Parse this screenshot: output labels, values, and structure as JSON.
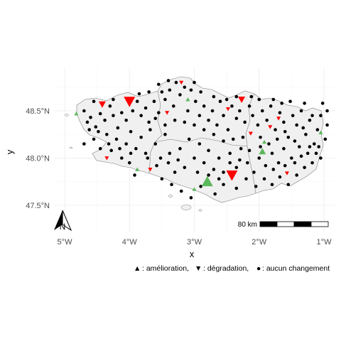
{
  "axes": {
    "x_label": "x",
    "y_label": "y",
    "x_ticks": [
      {
        "value": -5,
        "label": "5°W"
      },
      {
        "value": -4,
        "label": "4°W"
      },
      {
        "value": -3,
        "label": "3°W"
      },
      {
        "value": -2,
        "label": "2°W"
      },
      {
        "value": -1,
        "label": "1°W"
      }
    ],
    "y_ticks": [
      {
        "value": 48.5,
        "label": "48.5°N"
      },
      {
        "value": 48.0,
        "label": "48.0°N"
      },
      {
        "value": 47.5,
        "label": "47.5°N"
      }
    ],
    "xlim": [
      -5.3,
      -0.8
    ],
    "ylim": [
      47.3,
      48.95
    ],
    "grid": true
  },
  "map": {
    "land_color": "#f0f0f0",
    "border_color": "#7f7f7f",
    "grid_color": "#ebebeb"
  },
  "north_arrow": {
    "label": "N",
    "icon": "north-arrow-icon"
  },
  "scale_bar": {
    "label": "80 km"
  },
  "legend": {
    "improvement_symbol": "▲",
    "improvement_text": ": amélioration,",
    "degradation_symbol": "▼",
    "degradation_text": ": dégradation,",
    "nochange_symbol": "●",
    "nochange_text": ": aucun changement"
  },
  "colors": {
    "improvement": "#5cb85c",
    "degradation": "#ff0000",
    "nochange": "#000000"
  },
  "chart_data": {
    "type": "scatter",
    "improvement_points": [
      {
        "lon": -2.8,
        "lat": 47.75,
        "size": "large"
      },
      {
        "lon": -1.95,
        "lat": 48.07,
        "size": "medium"
      },
      {
        "lon": -4.82,
        "lat": 48.47,
        "size": "small"
      },
      {
        "lon": -3.0,
        "lat": 47.67,
        "size": "small"
      },
      {
        "lon": -1.05,
        "lat": 48.27,
        "size": "small"
      },
      {
        "lon": -1.92,
        "lat": 48.17,
        "size": "small"
      },
      {
        "lon": -3.88,
        "lat": 47.88,
        "size": "small"
      },
      {
        "lon": -3.1,
        "lat": 48.62,
        "size": "small"
      }
    ],
    "degradation_points": [
      {
        "lon": -2.42,
        "lat": 47.82,
        "size": "large"
      },
      {
        "lon": -4.0,
        "lat": 48.6,
        "size": "large"
      },
      {
        "lon": -4.42,
        "lat": 48.57,
        "size": "medium"
      },
      {
        "lon": -2.27,
        "lat": 48.62,
        "size": "medium"
      },
      {
        "lon": -3.42,
        "lat": 48.48,
        "size": "small"
      },
      {
        "lon": -3.2,
        "lat": 48.8,
        "size": "small"
      },
      {
        "lon": -2.48,
        "lat": 48.52,
        "size": "small"
      },
      {
        "lon": -2.13,
        "lat": 48.26,
        "size": "small"
      },
      {
        "lon": -4.35,
        "lat": 48.0,
        "size": "small"
      },
      {
        "lon": -1.57,
        "lat": 47.84,
        "size": "small"
      },
      {
        "lon": -3.68,
        "lat": 47.88,
        "size": "small"
      },
      {
        "lon": -1.7,
        "lat": 48.42,
        "size": "small"
      },
      {
        "lon": -1.83,
        "lat": 48.33,
        "size": "small"
      }
    ],
    "nochange_points": [
      [
        -4.7,
        48.5
      ],
      [
        -4.6,
        48.43
      ],
      [
        -4.52,
        48.33
      ],
      [
        -4.45,
        48.47
      ],
      [
        -4.38,
        48.4
      ],
      [
        -4.3,
        48.55
      ],
      [
        -4.25,
        48.45
      ],
      [
        -4.18,
        48.32
      ],
      [
        -4.12,
        48.48
      ],
      [
        -4.05,
        48.4
      ],
      [
        -3.95,
        48.5
      ],
      [
        -3.88,
        48.6
      ],
      [
        -3.82,
        48.45
      ],
      [
        -3.75,
        48.53
      ],
      [
        -3.7,
        48.38
      ],
      [
        -3.62,
        48.6
      ],
      [
        -3.55,
        48.48
      ],
      [
        -3.5,
        48.7
      ],
      [
        -3.45,
        48.62
      ],
      [
        -3.38,
        48.72
      ],
      [
        -3.32,
        48.55
      ],
      [
        -3.28,
        48.8
      ],
      [
        -3.22,
        48.67
      ],
      [
        -3.15,
        48.75
      ],
      [
        -3.1,
        48.5
      ],
      [
        -3.05,
        48.72
      ],
      [
        -2.98,
        48.6
      ],
      [
        -2.92,
        48.45
      ],
      [
        -2.85,
        48.55
      ],
      [
        -2.78,
        48.4
      ],
      [
        -2.72,
        48.5
      ],
      [
        -2.65,
        48.35
      ],
      [
        -2.6,
        48.6
      ],
      [
        -2.55,
        48.45
      ],
      [
        -2.48,
        48.3
      ],
      [
        -2.42,
        48.55
      ],
      [
        -2.35,
        48.42
      ],
      [
        -2.3,
        48.5
      ],
      [
        -2.22,
        48.38
      ],
      [
        -2.15,
        48.55
      ],
      [
        -2.1,
        48.45
      ],
      [
        -2.02,
        48.35
      ],
      [
        -1.95,
        48.5
      ],
      [
        -1.88,
        48.4
      ],
      [
        -1.82,
        48.55
      ],
      [
        -1.75,
        48.3
      ],
      [
        -1.68,
        48.48
      ],
      [
        -1.62,
        48.38
      ],
      [
        -1.55,
        48.22
      ],
      [
        -1.48,
        48.45
      ],
      [
        -1.42,
        48.35
      ],
      [
        -1.35,
        48.5
      ],
      [
        -1.28,
        48.25
      ],
      [
        -1.22,
        48.4
      ],
      [
        -1.15,
        48.15
      ],
      [
        -1.1,
        48.3
      ],
      [
        -1.05,
        48.45
      ],
      [
        -0.98,
        48.2
      ],
      [
        -0.95,
        48.5
      ],
      [
        -1.12,
        48.05
      ],
      [
        -1.25,
        48.05
      ],
      [
        -1.38,
        48.12
      ],
      [
        -1.5,
        48.0
      ],
      [
        -1.62,
        48.1
      ],
      [
        -1.7,
        47.95
      ],
      [
        -1.8,
        48.05
      ],
      [
        -1.9,
        47.92
      ],
      [
        -2.0,
        48.0
      ],
      [
        -2.08,
        47.85
      ],
      [
        -2.18,
        47.95
      ],
      [
        -2.28,
        48.1
      ],
      [
        -2.35,
        47.9
      ],
      [
        -2.45,
        48.05
      ],
      [
        -2.55,
        47.85
      ],
      [
        -2.62,
        48.0
      ],
      [
        -2.7,
        47.88
      ],
      [
        -2.78,
        48.08
      ],
      [
        -2.85,
        47.95
      ],
      [
        -2.92,
        48.15
      ],
      [
        -3.0,
        48.0
      ],
      [
        -3.08,
        48.2
      ],
      [
        -3.15,
        47.9
      ],
      [
        -3.22,
        48.1
      ],
      [
        -3.3,
        47.85
      ],
      [
        -3.38,
        48.05
      ],
      [
        -3.45,
        48.25
      ],
      [
        -3.52,
        48.0
      ],
      [
        -3.6,
        48.15
      ],
      [
        -3.68,
        48.3
      ],
      [
        -3.75,
        48.05
      ],
      [
        -3.82,
        48.22
      ],
      [
        -3.9,
        48.1
      ],
      [
        -3.98,
        48.28
      ],
      [
        -4.05,
        48.15
      ],
      [
        -4.12,
        48.0
      ],
      [
        -4.2,
        48.2
      ],
      [
        -4.28,
        48.08
      ],
      [
        -4.35,
        48.25
      ],
      [
        -4.45,
        48.1
      ],
      [
        -4.55,
        48.2
      ],
      [
        -4.62,
        48.3
      ],
      [
        -4.7,
        48.15
      ],
      [
        -4.0,
        47.95
      ],
      [
        -3.92,
        47.82
      ],
      [
        -3.5,
        47.78
      ],
      [
        -3.35,
        47.72
      ],
      [
        -3.2,
        47.65
      ],
      [
        -3.05,
        47.58
      ],
      [
        -2.9,
        47.7
      ],
      [
        -2.68,
        47.62
      ],
      [
        -2.55,
        47.72
      ],
      [
        -2.35,
        47.68
      ],
      [
        -2.2,
        47.78
      ],
      [
        -2.05,
        47.7
      ],
      [
        -1.92,
        47.78
      ],
      [
        -1.8,
        47.72
      ],
      [
        -1.68,
        47.8
      ],
      [
        -1.55,
        47.72
      ],
      [
        -1.42,
        47.82
      ],
      [
        -1.3,
        47.9
      ],
      [
        -1.18,
        47.95
      ],
      [
        -1.05,
        48.0
      ],
      [
        -2.25,
        48.22
      ],
      [
        -2.4,
        48.2
      ],
      [
        -2.55,
        48.18
      ],
      [
        -2.7,
        48.25
      ],
      [
        -2.85,
        48.3
      ],
      [
        -3.0,
        48.35
      ],
      [
        -3.15,
        48.38
      ],
      [
        -3.3,
        48.4
      ],
      [
        -3.45,
        48.35
      ],
      [
        -3.6,
        48.42
      ],
      [
        -1.98,
        48.22
      ],
      [
        -1.85,
        48.15
      ],
      [
        -1.72,
        48.2
      ],
      [
        -1.6,
        48.28
      ],
      [
        -1.45,
        48.18
      ],
      [
        -1.32,
        48.32
      ],
      [
        -1.18,
        48.45
      ],
      [
        -1.3,
        48.58
      ],
      [
        -1.52,
        48.6
      ],
      [
        -1.65,
        48.58
      ],
      [
        -1.78,
        48.62
      ],
      [
        -2.0,
        48.62
      ],
      [
        -2.12,
        48.65
      ],
      [
        -2.35,
        48.65
      ],
      [
        -2.5,
        48.62
      ],
      [
        -2.7,
        48.65
      ],
      [
        -2.9,
        48.7
      ],
      [
        -3.0,
        48.8
      ],
      [
        -3.4,
        48.82
      ],
      [
        -3.55,
        48.78
      ],
      [
        -3.7,
        48.7
      ],
      [
        -3.85,
        48.68
      ],
      [
        -4.25,
        48.62
      ],
      [
        -4.55,
        48.6
      ],
      [
        -4.65,
        48.38
      ],
      [
        -4.48,
        48.28
      ],
      [
        -4.32,
        48.15
      ],
      [
        -4.15,
        48.1
      ],
      [
        -3.98,
        48.05
      ],
      [
        -3.72,
        48.0
      ],
      [
        -3.58,
        47.92
      ],
      [
        -3.4,
        47.95
      ],
      [
        -3.25,
        47.98
      ],
      [
        -2.95,
        47.85
      ],
      [
        -2.78,
        47.82
      ],
      [
        -2.62,
        47.78
      ],
      [
        -2.45,
        47.95
      ],
      [
        -2.3,
        47.98
      ],
      [
        -2.15,
        48.08
      ],
      [
        -1.98,
        48.12
      ],
      [
        -1.78,
        47.88
      ],
      [
        -1.6,
        47.92
      ],
      [
        -1.45,
        47.95
      ],
      [
        -1.35,
        48.02
      ],
      [
        -1.22,
        48.12
      ],
      [
        -1.08,
        48.12
      ],
      [
        -0.95,
        48.35
      ],
      [
        -1.02,
        48.58
      ]
    ]
  }
}
